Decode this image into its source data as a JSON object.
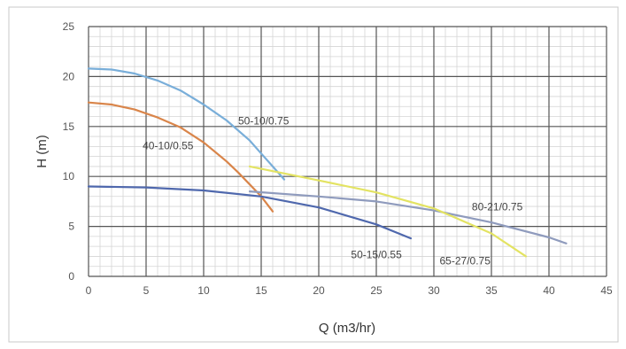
{
  "chart_data": {
    "type": "line",
    "title": "",
    "xlabel": "Q (m3/hr)",
    "ylabel": "H (m)",
    "xlim": [
      0,
      45
    ],
    "ylim": [
      0,
      25
    ],
    "x_ticks": [
      0,
      5,
      10,
      15,
      20,
      25,
      30,
      35,
      40,
      45
    ],
    "y_ticks": [
      0,
      5,
      10,
      15,
      20,
      25
    ],
    "grid": true,
    "legend": "none",
    "series": [
      {
        "name": "50-10/0.75",
        "color": "#79aed9",
        "x": [
          0,
          2,
          4,
          6,
          8,
          10,
          12,
          14,
          15,
          16,
          17
        ],
        "y": [
          20.8,
          20.7,
          20.3,
          19.6,
          18.6,
          17.2,
          15.6,
          13.6,
          12.3,
          11.0,
          9.7
        ]
      },
      {
        "name": "40-10/0.55",
        "color": "#d9854a",
        "x": [
          0,
          2,
          4,
          6,
          8,
          10,
          12,
          13,
          14,
          15,
          16
        ],
        "y": [
          17.4,
          17.2,
          16.7,
          15.9,
          14.9,
          13.4,
          11.5,
          10.4,
          9.2,
          8.0,
          6.5
        ]
      },
      {
        "name": "80-21/0.75",
        "color": "#8f9bbd",
        "x": [
          14,
          20,
          25,
          30,
          35,
          40,
          41.5
        ],
        "y": [
          8.5,
          8.0,
          7.5,
          6.6,
          5.4,
          3.9,
          3.3
        ]
      },
      {
        "name": "65-27/0.75",
        "color": "#e3e362",
        "x": [
          14,
          17,
          20,
          25,
          30,
          35,
          38
        ],
        "y": [
          11.0,
          10.3,
          9.6,
          8.4,
          6.8,
          4.3,
          2.0
        ]
      },
      {
        "name": "50-15/0.55",
        "color": "#4f68ad",
        "x": [
          0,
          5,
          10,
          15,
          20,
          25,
          28
        ],
        "y": [
          9.0,
          8.9,
          8.6,
          8.0,
          6.9,
          5.2,
          3.8
        ]
      }
    ],
    "labels": [
      {
        "text": "50-10/0.75",
        "x": 13,
        "y": 15.2
      },
      {
        "text": "40-10/0.55",
        "x": 4.7,
        "y": 12.7
      },
      {
        "text": "80-21/0.75",
        "x": 33.3,
        "y": 6.6
      },
      {
        "text": "65-27/0.75",
        "x": 30.5,
        "y": 1.2
      },
      {
        "text": "50-15/0.55",
        "x": 22.8,
        "y": 1.8
      }
    ]
  }
}
